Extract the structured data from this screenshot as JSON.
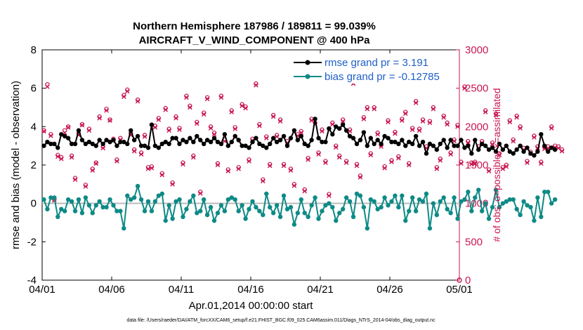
{
  "colors": {
    "rmse": "#000000",
    "bias": "#0e8a86",
    "obs": "#c8174f",
    "legend_text": "#1f5fc7",
    "zero_line": "#bbbbbb"
  },
  "chart_data": {
    "type": "line",
    "title_line1": "Northern Hemisphere 187986 / 189811 = 99.039%",
    "title_line2": "AIRCRAFT_V_WIND_COMPONENT @ 400 hPa",
    "xlabel": "Apr.01,2014 00:00:00 start",
    "ylabel_left": "rmse and bias (model - observation)",
    "ylabel_right": "# of obs: o=possible; ×=assimilated",
    "x_range": [
      0,
      30
    ],
    "y_left_range": [
      -4,
      8
    ],
    "y_right_range": [
      0,
      3000
    ],
    "x_ticks": [
      {
        "value": 0,
        "label": "04/01"
      },
      {
        "value": 5,
        "label": "04/06"
      },
      {
        "value": 10,
        "label": "04/11"
      },
      {
        "value": 15,
        "label": "04/16"
      },
      {
        "value": 20,
        "label": "04/21"
      },
      {
        "value": 25,
        "label": "04/26"
      },
      {
        "value": 30,
        "label": "05/01"
      }
    ],
    "y_left_ticks": [
      -4,
      -2,
      0,
      2,
      4,
      6,
      8
    ],
    "y_right_ticks": [
      0,
      500,
      1000,
      1500,
      2000,
      2500,
      3000
    ],
    "legend": [
      {
        "name": "rmse",
        "label": "rmse grand pr = 3.191"
      },
      {
        "name": "bias",
        "label": "bias grand pr = -0.12785"
      }
    ],
    "footnote": "data file: /Users/raeder/DAI/ATM_forcXX/CAM6_setup/f.e21.FHIST_BGC.f09_025.CAM6assim.011/Diags_NTrS_2014-04/obs_diag_output.nc",
    "step_days": 0.25,
    "rmse": [
      3.0,
      3.2,
      3.1,
      3.1,
      2.9,
      3.6,
      3.5,
      3.4,
      3.1,
      3.1,
      3.8,
      3.3,
      3.1,
      3.2,
      3.1,
      3.0,
      3.3,
      3.1,
      3.3,
      3.2,
      3.3,
      3.0,
      3.2,
      3.2,
      3.1,
      3.8,
      3.3,
      3.5,
      3.0,
      3.0,
      2.9,
      4.1,
      3.0,
      2.9,
      3.1,
      3.2,
      3.1,
      3.4,
      3.4,
      3.1,
      3.3,
      3.2,
      3.4,
      3.2,
      3.5,
      3.3,
      3.1,
      3.3,
      3.2,
      3.4,
      3.2,
      3.1,
      3.6,
      3.0,
      3.2,
      3.5,
      3.3,
      3.0,
      3.0,
      2.9,
      3.2,
      3.4,
      3.1,
      3.0,
      2.9,
      3.1,
      3.4,
      3.2,
      3.3,
      3.5,
      3.0,
      3.4,
      3.8,
      3.3,
      3.5,
      3.1,
      3.0,
      3.3,
      4.4,
      3.4,
      3.2,
      3.2,
      3.9,
      3.6,
      4.0,
      3.9,
      4.1,
      3.8,
      3.5,
      3.4,
      3.1,
      3.3,
      3.7,
      3.0,
      3.4,
      3.1,
      3.3,
      3.1,
      3.5,
      3.4,
      3.2,
      3.2,
      3.1,
      3.3,
      3.0,
      3.2,
      3.1,
      3.5,
      3.0,
      3.2,
      2.6,
      3.1,
      3.0,
      2.8,
      3.1,
      3.3,
      2.9,
      3.3,
      3.0,
      3.0,
      3.3,
      2.9,
      3.0,
      2.6,
      3.3,
      2.8,
      3.1,
      3.0,
      2.8,
      2.9,
      2.7,
      3.1,
      2.8,
      3.0,
      2.7,
      2.6,
      2.8,
      3.0,
      2.7,
      2.9,
      2.6,
      2.5,
      2.7,
      3.6,
      3.0,
      2.7,
      2.9,
      2.8
    ],
    "bias": [
      0.2,
      -0.3,
      0.3,
      0.3,
      -0.7,
      -0.3,
      -0.4,
      0.2,
      0.1,
      -0.4,
      0.2,
      -0.5,
      0.3,
      -0.1,
      -0.5,
      -0.1,
      0.1,
      -0.2,
      -0.2,
      0.2,
      -0.1,
      -0.4,
      -0.4,
      -1.3,
      0.4,
      0.2,
      0.3,
      0.9,
      0.2,
      -0.4,
      0.1,
      -0.4,
      0.1,
      0.4,
      0.5,
      -0.9,
      -0.1,
      -0.8,
      0.1,
      0.2,
      -0.7,
      -0.3,
      0.1,
      0.4,
      -0.5,
      -0.4,
      0.2,
      -0.6,
      -0.2,
      -0.9,
      -0.5,
      -0.1,
      -0.4,
      0.2,
      0.3,
      0.2,
      -0.4,
      -0.1,
      -0.8,
      -0.3,
      0.1,
      -0.2,
      -0.4,
      -0.6,
      0.5,
      -0.2,
      -0.5,
      -0.1,
      -0.7,
      0.4,
      -0.3,
      -0.2,
      -1.1,
      -0.5,
      0.2,
      -0.5,
      -0.7,
      -0.1,
      0.3,
      -0.8,
      -0.4,
      -0.1,
      0.0,
      -0.2,
      -0.9,
      -0.5,
      -0.3,
      0.3,
      0.1,
      -0.7,
      0.5,
      0.4,
      -0.2,
      -1.3,
      0.2,
      0.1,
      -0.3,
      -0.2,
      0.3,
      -0.1,
      0.1,
      0.4,
      -0.2,
      0.4,
      -0.9,
      -0.4,
      0.3,
      -0.4,
      0.2,
      0.1,
      0.5,
      -1.3,
      0.0,
      -0.6,
      0.1,
      0.3,
      -0.3,
      -0.5,
      0.3,
      -0.8,
      0.1,
      0.2,
      0.6,
      -0.4,
      0.3,
      0.7,
      -0.4,
      0.0,
      -0.8,
      -0.2,
      0.7,
      -0.2,
      0.0,
      0.1,
      0.2,
      0.2,
      -0.3,
      -0.6,
      0.1,
      -0.1,
      -0.2,
      -0.9,
      0.3,
      -0.7,
      0.6,
      0.6,
      0.0,
      0.2
    ],
    "obs_possible": [
      1950,
      2550,
      1900,
      1050,
      1630,
      1600,
      1950,
      2000,
      1620,
      1330,
      1910,
      2030,
      1240,
      1970,
      1450,
      1530,
      2130,
      1740,
      2230,
      2090,
      1840,
      1570,
      1850,
      2410,
      2480,
      1910,
      1700,
      2350,
      1660,
      1890,
      1470,
      1480,
      2010,
      2110,
      1390,
      2240,
      1970,
      1270,
      2130,
      1980,
      1530,
      2400,
      2270,
      1620,
      2060,
      1150,
      2180,
      2380,
      2000,
      1920,
      1520,
      2400,
      1830,
      1440,
      2210,
      1990,
      1470,
      2290,
      2260,
      1570,
      1840,
      2560,
      2030,
      1310,
      1870,
      1510,
      2150,
      1890,
      2090,
      1510,
      1810,
      1450,
      1250,
      1900,
      1940,
      1180,
      1590,
      2100,
      2050,
      1660,
      1960,
      1550,
      1120,
      2050,
      1750,
      1620,
      2090,
      1550,
      1960,
      2580,
      1510,
      1360,
      2120,
      2250,
      1650,
      2250,
      1920,
      1760,
      1480,
      2080,
      1560,
      1930,
      1610,
      2100,
      2190,
      1520,
      1980,
      2330,
      1970,
      2090,
      1740,
      2070,
      2250,
      1470,
      1580,
      2140,
      2050,
      1660,
      1830,
      2020,
      1540,
      2520,
      1810,
      1530,
      1540,
      1740,
      1810,
      2210,
      1440,
      1790,
      2170,
      1650,
      1470,
      1500,
      2080,
      1830,
      2140,
      2000,
      1720,
      1550,
      1670,
      1880,
      1740,
      1540,
      1730,
      1740,
      2000,
      1750,
      1740,
      1700
    ],
    "obs_assimilated": [
      1940,
      2520,
      1880,
      1040,
      1610,
      1580,
      1920,
      1990,
      1600,
      1310,
      1890,
      2020,
      1220,
      1950,
      1430,
      1520,
      2110,
      1720,
      2210,
      2080,
      1820,
      1550,
      1830,
      2390,
      2460,
      1890,
      1680,
      2330,
      1640,
      1870,
      1450,
      1460,
      1990,
      2090,
      1370,
      2220,
      1950,
      1250,
      2110,
      1960,
      1510,
      2380,
      2250,
      1600,
      2040,
      1130,
      2160,
      2360,
      1980,
      1900,
      1500,
      2380,
      1810,
      1420,
      2190,
      1970,
      1450,
      2270,
      2240,
      1550,
      1820,
      2540,
      2010,
      1290,
      1850,
      1490,
      2130,
      1870,
      2070,
      1490,
      1790,
      1430,
      1230,
      1880,
      1920,
      1160,
      1570,
      2080,
      2030,
      1640,
      1940,
      1530,
      1100,
      2030,
      1730,
      1600,
      2070,
      1530,
      1940,
      2560,
      1490,
      1340,
      2100,
      2230,
      1630,
      2230,
      1900,
      1740,
      1460,
      2060,
      1540,
      1910,
      1590,
      2080,
      2170,
      1500,
      1960,
      2310,
      1950,
      2070,
      1720,
      2050,
      2230,
      1450,
      1560,
      2120,
      2030,
      1640,
      1810,
      2000,
      1520,
      2500,
      1790,
      1510,
      1520,
      1720,
      1790,
      2190,
      1420,
      1770,
      2150,
      1630,
      1450,
      1480,
      2060,
      1810,
      2120,
      1980,
      1700,
      1530,
      1650,
      1860,
      1720,
      1520,
      1710,
      1720,
      1980,
      1730,
      1720,
      1680
    ]
  }
}
